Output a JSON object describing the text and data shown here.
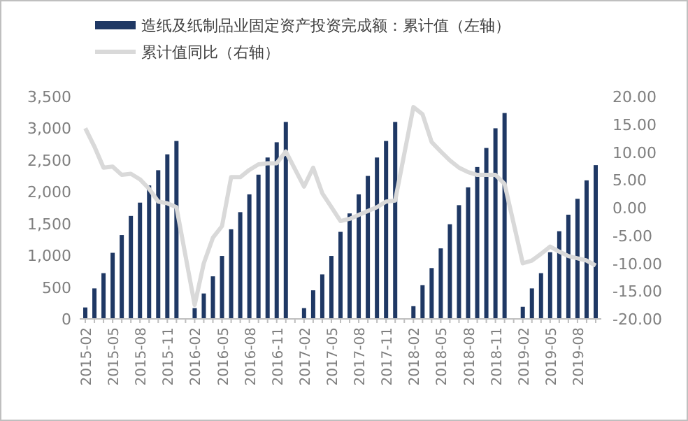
{
  "chart_data": {
    "type": "bar",
    "categories": [
      "2015-02",
      null,
      null,
      "2015-05",
      null,
      null,
      "2015-08",
      null,
      null,
      "2015-11",
      null,
      null,
      "2016-02",
      null,
      null,
      "2016-05",
      null,
      null,
      "2016-08",
      null,
      null,
      "2016-11",
      null,
      null,
      "2017-02",
      null,
      null,
      "2017-05",
      null,
      null,
      "2017-08",
      null,
      null,
      "2017-11",
      null,
      null,
      "2018-02",
      null,
      null,
      "2018-05",
      null,
      null,
      "2018-08",
      null,
      null,
      "2018-11",
      null,
      null,
      "2019-02",
      null,
      null,
      "2019-05",
      null,
      null,
      "2019-08",
      null,
      null
    ],
    "series": [
      {
        "name": "造纸及纸制品业固定资产投资完成额：累计值（左轴）",
        "color": "#1f3864",
        "values": [
          180,
          480,
          720,
          1040,
          1320,
          1620,
          1830,
          2100,
          2340,
          2590,
          2800,
          null,
          170,
          400,
          670,
          990,
          1410,
          1680,
          1960,
          2270,
          2540,
          2780,
          3100,
          null,
          170,
          450,
          700,
          990,
          1370,
          1660,
          1960,
          2250,
          2540,
          2800,
          3100,
          null,
          200,
          530,
          800,
          1110,
          1490,
          1790,
          2070,
          2390,
          2690,
          3000,
          3240,
          null,
          190,
          480,
          720,
          1050,
          1380,
          1640,
          1890,
          2180,
          2420
        ]
      },
      {
        "name": "累计值同比（右轴）",
        "type": "line",
        "axis": "y2",
        "color": "#d9d9d9",
        "values": [
          14.3,
          11,
          7.2,
          7.4,
          5.9,
          6.1,
          5.1,
          3.4,
          1.1,
          0.8,
          0.1,
          null,
          -17.5,
          -10,
          -5.4,
          -3.3,
          5.5,
          5.5,
          6.8,
          7.8,
          8,
          8,
          10.1,
          null,
          3.8,
          7.2,
          2.6,
          0.1,
          -2.4,
          -2,
          -1.3,
          -0.6,
          0.1,
          1.1,
          1.3,
          null,
          18.1,
          16.8,
          11.8,
          10.1,
          8.5,
          7.2,
          6.4,
          5.9,
          5.9,
          5.9,
          4.3,
          null,
          -10,
          -9.5,
          -8.3,
          -7,
          -7.9,
          -8.7,
          -9.1,
          -9.5,
          -10.4
        ]
      }
    ],
    "ylim": [
      0,
      3500
    ],
    "yticks": [
      {
        "value": 0,
        "label": "0"
      },
      {
        "value": 500,
        "label": "500"
      },
      {
        "value": 1000,
        "label": "1,000"
      },
      {
        "value": 1500,
        "label": "1,500"
      },
      {
        "value": 2000,
        "label": "2,000"
      },
      {
        "value": 2500,
        "label": "2,500"
      },
      {
        "value": 3000,
        "label": "3,000"
      },
      {
        "value": 3500,
        "label": "3,500"
      }
    ],
    "y2lim": [
      -20,
      20
    ],
    "y2ticks": [
      {
        "value": -20,
        "label": "-20.00"
      },
      {
        "value": -15,
        "label": "-15.00"
      },
      {
        "value": -10,
        "label": "-10.00"
      },
      {
        "value": -5,
        "label": "-5.00"
      },
      {
        "value": 0,
        "label": "0.00"
      },
      {
        "value": 5,
        "label": "5.00"
      },
      {
        "value": 10,
        "label": "10.00"
      },
      {
        "value": 15,
        "label": "15.00"
      },
      {
        "value": 20,
        "label": "20.00"
      }
    ],
    "legend": "top",
    "grid": false
  }
}
